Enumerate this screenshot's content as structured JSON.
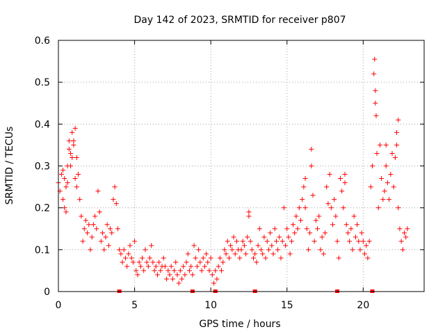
{
  "chart_data": {
    "type": "scatter",
    "title": "Day 142 of 2023, SRMTID for receiver p807",
    "xlabel": "GPS time / hours",
    "ylabel": "SRMTID / TECUs",
    "xlim": [
      0,
      24
    ],
    "ylim": [
      0,
      0.6
    ],
    "xticks": [
      0,
      5,
      10,
      15,
      20
    ],
    "xtick_labels": [
      "0",
      "5",
      "10",
      "15",
      "20"
    ],
    "yticks": [
      0,
      0.1,
      0.2,
      0.3,
      0.4,
      0.5,
      0.6
    ],
    "ytick_labels": [
      "0",
      "0.1",
      "0.2",
      "0.3",
      "0.4",
      "0.5",
      "0.6"
    ],
    "grid": true,
    "marker": "+",
    "color": "#ff0000",
    "series": [
      {
        "name": "SRMTID",
        "points": [
          [
            0.0,
            0.26
          ],
          [
            0.1,
            0.24
          ],
          [
            0.2,
            0.28
          ],
          [
            0.3,
            0.22
          ],
          [
            0.4,
            0.27
          ],
          [
            0.5,
            0.25
          ],
          [
            0.6,
            0.3
          ],
          [
            0.7,
            0.36
          ],
          [
            0.8,
            0.33
          ],
          [
            0.9,
            0.38
          ],
          [
            1.0,
            0.35
          ],
          [
            1.1,
            0.39
          ],
          [
            1.2,
            0.32
          ],
          [
            1.3,
            0.28
          ],
          [
            1.4,
            0.22
          ],
          [
            1.5,
            0.18
          ],
          [
            1.6,
            0.12
          ],
          [
            1.7,
            0.15
          ],
          [
            1.8,
            0.17
          ],
          [
            1.9,
            0.14
          ],
          [
            2.0,
            0.16
          ],
          [
            2.1,
            0.1
          ],
          [
            2.2,
            0.13
          ],
          [
            2.3,
            0.16
          ],
          [
            2.4,
            0.18
          ],
          [
            2.5,
            0.15
          ],
          [
            2.6,
            0.24
          ],
          [
            2.7,
            0.19
          ],
          [
            2.8,
            0.12
          ],
          [
            2.9,
            0.14
          ],
          [
            3.0,
            0.1
          ],
          [
            3.1,
            0.13
          ],
          [
            3.2,
            0.16
          ],
          [
            3.3,
            0.11
          ],
          [
            3.4,
            0.15
          ],
          [
            3.5,
            0.14
          ],
          [
            3.6,
            0.22
          ],
          [
            3.7,
            0.25
          ],
          [
            3.8,
            0.21
          ],
          [
            3.9,
            0.15
          ],
          [
            4.0,
            0.1
          ],
          [
            4.1,
            0.09
          ],
          [
            4.2,
            0.07
          ],
          [
            4.3,
            0.1
          ],
          [
            4.4,
            0.08
          ],
          [
            4.5,
            0.06
          ],
          [
            4.6,
            0.09
          ],
          [
            4.7,
            0.11
          ],
          [
            4.8,
            0.08
          ],
          [
            4.9,
            0.07
          ],
          [
            5.0,
            0.12
          ],
          [
            5.1,
            0.05
          ],
          [
            5.2,
            0.04
          ],
          [
            5.3,
            0.07
          ],
          [
            5.4,
            0.06
          ],
          [
            5.5,
            0.08
          ],
          [
            5.6,
            0.05
          ],
          [
            5.7,
            0.1
          ],
          [
            5.8,
            0.07
          ],
          [
            5.9,
            0.06
          ],
          [
            6.0,
            0.08
          ],
          [
            6.1,
            0.11
          ],
          [
            6.2,
            0.07
          ],
          [
            6.3,
            0.05
          ],
          [
            6.4,
            0.06
          ],
          [
            6.5,
            0.04
          ],
          [
            6.6,
            0.07
          ],
          [
            6.7,
            0.05
          ],
          [
            6.8,
            0.06
          ],
          [
            6.9,
            0.08
          ],
          [
            7.0,
            0.06
          ],
          [
            7.1,
            0.03
          ],
          [
            7.2,
            0.05
          ],
          [
            7.3,
            0.04
          ],
          [
            7.4,
            0.06
          ],
          [
            7.5,
            0.03
          ],
          [
            7.6,
            0.05
          ],
          [
            7.7,
            0.07
          ],
          [
            7.8,
            0.04
          ],
          [
            7.9,
            0.02
          ],
          [
            8.0,
            0.05
          ],
          [
            8.1,
            0.03
          ],
          [
            8.2,
            0.06
          ],
          [
            8.3,
            0.04
          ],
          [
            8.4,
            0.07
          ],
          [
            8.5,
            0.09
          ],
          [
            8.6,
            0.05
          ],
          [
            8.7,
            0.06
          ],
          [
            8.8,
            0.04
          ],
          [
            8.9,
            0.11
          ],
          [
            9.0,
            0.08
          ],
          [
            9.1,
            0.06
          ],
          [
            9.2,
            0.1
          ],
          [
            9.3,
            0.07
          ],
          [
            9.4,
            0.05
          ],
          [
            9.5,
            0.08
          ],
          [
            9.6,
            0.06
          ],
          [
            9.7,
            0.09
          ],
          [
            9.8,
            0.07
          ],
          [
            9.9,
            0.05
          ],
          [
            10.0,
            0.08
          ],
          [
            10.1,
            0.04
          ],
          [
            10.2,
            0.02
          ],
          [
            10.3,
            0.05
          ],
          [
            10.4,
            0.03
          ],
          [
            10.5,
            0.06
          ],
          [
            10.6,
            0.08
          ],
          [
            10.7,
            0.05
          ],
          [
            10.8,
            0.07
          ],
          [
            10.9,
            0.1
          ],
          [
            11.0,
            0.09
          ],
          [
            11.1,
            0.12
          ],
          [
            11.2,
            0.08
          ],
          [
            11.3,
            0.11
          ],
          [
            11.4,
            0.1
          ],
          [
            11.5,
            0.13
          ],
          [
            11.6,
            0.09
          ],
          [
            11.7,
            0.12
          ],
          [
            11.8,
            0.1
          ],
          [
            11.9,
            0.08
          ],
          [
            12.0,
            0.1
          ],
          [
            12.1,
            0.12
          ],
          [
            12.2,
            0.11
          ],
          [
            12.3,
            0.09
          ],
          [
            12.4,
            0.13
          ],
          [
            12.5,
            0.18
          ],
          [
            12.6,
            0.12
          ],
          [
            12.7,
            0.1
          ],
          [
            12.8,
            0.08
          ],
          [
            12.9,
            0.09
          ],
          [
            13.0,
            0.07
          ],
          [
            13.1,
            0.11
          ],
          [
            13.2,
            0.15
          ],
          [
            13.3,
            0.1
          ],
          [
            13.4,
            0.09
          ],
          [
            13.5,
            0.13
          ],
          [
            13.6,
            0.08
          ],
          [
            13.7,
            0.12
          ],
          [
            13.8,
            0.1
          ],
          [
            13.9,
            0.14
          ],
          [
            14.0,
            0.11
          ],
          [
            14.1,
            0.09
          ],
          [
            14.2,
            0.15
          ],
          [
            14.3,
            0.12
          ],
          [
            14.4,
            0.1
          ],
          [
            14.5,
            0.13
          ],
          [
            14.6,
            0.08
          ],
          [
            14.7,
            0.12
          ],
          [
            14.8,
            0.2
          ],
          [
            14.9,
            0.11
          ],
          [
            15.0,
            0.15
          ],
          [
            15.1,
            0.13
          ],
          [
            15.2,
            0.09
          ],
          [
            15.3,
            0.12
          ],
          [
            15.4,
            0.16
          ],
          [
            15.5,
            0.14
          ],
          [
            15.6,
            0.18
          ],
          [
            15.7,
            0.15
          ],
          [
            15.8,
            0.2
          ],
          [
            15.9,
            0.17
          ],
          [
            16.0,
            0.22
          ],
          [
            16.1,
            0.25
          ],
          [
            16.2,
            0.2
          ],
          [
            16.3,
            0.15
          ],
          [
            16.4,
            0.1
          ],
          [
            16.5,
            0.14
          ],
          [
            16.6,
            0.3
          ],
          [
            16.7,
            0.23
          ],
          [
            16.8,
            0.12
          ],
          [
            16.9,
            0.17
          ],
          [
            17.0,
            0.15
          ],
          [
            17.1,
            0.18
          ],
          [
            17.2,
            0.1
          ],
          [
            17.3,
            0.13
          ],
          [
            17.4,
            0.09
          ],
          [
            17.5,
            0.14
          ],
          [
            17.6,
            0.25
          ],
          [
            17.7,
            0.21
          ],
          [
            17.8,
            0.28
          ],
          [
            17.9,
            0.2
          ],
          [
            18.0,
            0.16
          ],
          [
            18.1,
            0.22
          ],
          [
            18.2,
            0.18
          ],
          [
            18.3,
            0.12
          ],
          [
            18.4,
            0.08
          ],
          [
            18.5,
            0.27
          ],
          [
            18.6,
            0.24
          ],
          [
            18.7,
            0.2
          ],
          [
            18.8,
            0.26
          ],
          [
            18.9,
            0.16
          ],
          [
            19.0,
            0.14
          ],
          [
            19.1,
            0.12
          ],
          [
            19.2,
            0.15
          ],
          [
            19.3,
            0.1
          ],
          [
            19.4,
            0.18
          ],
          [
            19.5,
            0.13
          ],
          [
            19.6,
            0.16
          ],
          [
            19.7,
            0.12
          ],
          [
            19.8,
            0.1
          ],
          [
            19.9,
            0.14
          ],
          [
            20.0,
            0.12
          ],
          [
            20.1,
            0.09
          ],
          [
            20.2,
            0.11
          ],
          [
            20.3,
            0.08
          ],
          [
            20.4,
            0.12
          ],
          [
            20.5,
            0.25
          ],
          [
            20.6,
            0.3
          ],
          [
            20.7,
            0.52
          ],
          [
            20.8,
            0.45
          ],
          [
            20.9,
            0.33
          ],
          [
            21.0,
            0.2
          ],
          [
            21.1,
            0.35
          ],
          [
            21.2,
            0.27
          ],
          [
            21.3,
            0.22
          ],
          [
            21.4,
            0.24
          ],
          [
            21.5,
            0.3
          ],
          [
            21.6,
            0.26
          ],
          [
            21.7,
            0.22
          ],
          [
            21.8,
            0.28
          ],
          [
            21.9,
            0.33
          ],
          [
            22.0,
            0.25
          ],
          [
            22.1,
            0.32
          ],
          [
            22.2,
            0.38
          ],
          [
            22.3,
            0.2
          ],
          [
            22.4,
            0.15
          ],
          [
            22.5,
            0.12
          ],
          [
            22.6,
            0.1
          ],
          [
            22.7,
            0.14
          ],
          [
            22.8,
            0.13
          ],
          [
            22.9,
            0.15
          ],
          [
            20.75,
            0.555
          ],
          [
            20.8,
            0.48
          ],
          [
            20.85,
            0.42
          ],
          [
            21.5,
            0.35
          ],
          [
            22.3,
            0.41
          ],
          [
            22.2,
            0.35
          ],
          [
            1.0,
            0.36
          ],
          [
            0.9,
            0.32
          ],
          [
            0.8,
            0.3
          ],
          [
            0.7,
            0.34
          ],
          [
            0.3,
            0.29
          ],
          [
            0.6,
            0.26
          ],
          [
            0.4,
            0.2
          ],
          [
            0.5,
            0.19
          ],
          [
            1.1,
            0.27
          ],
          [
            1.2,
            0.25
          ],
          [
            12.5,
            0.19
          ],
          [
            16.6,
            0.34
          ],
          [
            16.2,
            0.27
          ],
          [
            18.8,
            0.28
          ]
        ]
      }
    ],
    "baseline_markers_x": [
      4.0,
      8.8,
      10.3,
      12.9,
      18.3,
      20.6
    ]
  }
}
